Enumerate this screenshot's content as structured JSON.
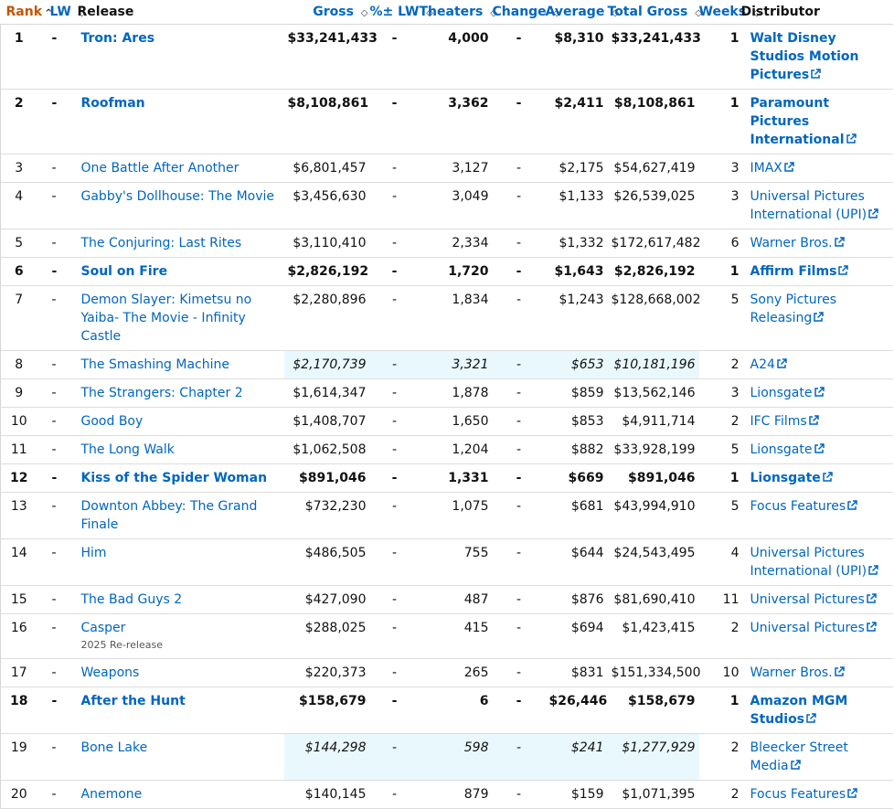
{
  "headers": {
    "rank": "Rank",
    "lw": "LW",
    "release": "Release",
    "gross": "Gross",
    "pct_lw": "%± LW",
    "theaters": "Theaters",
    "change": "Change",
    "average": "Average",
    "total_gross": "Total Gross",
    "weeks": "Weeks",
    "distributor": "Distributor"
  },
  "sort_icons": {
    "active": "caret-up-icon",
    "inactive": "sort-updown-icon"
  },
  "colors": {
    "link": "#0066c0",
    "rank_header": "#c45500",
    "highlight": "#e9f8fd"
  },
  "rows": [
    {
      "rank": "1",
      "lw": "-",
      "title": "Tron: Ares",
      "sub": "",
      "gross": "$33,241,433",
      "pct": "-",
      "theaters": "4,000",
      "change": "-",
      "average": "$8,310",
      "total": "$33,241,433",
      "weeks": "1",
      "dist": "Walt Disney Studios Motion Pictures",
      "bold": true,
      "hl": false
    },
    {
      "rank": "2",
      "lw": "-",
      "title": "Roofman",
      "sub": "",
      "gross": "$8,108,861",
      "pct": "-",
      "theaters": "3,362",
      "change": "-",
      "average": "$2,411",
      "total": "$8,108,861",
      "weeks": "1",
      "dist": "Paramount Pictures International",
      "bold": true,
      "hl": false
    },
    {
      "rank": "3",
      "lw": "-",
      "title": "One Battle After Another",
      "sub": "",
      "gross": "$6,801,457",
      "pct": "-",
      "theaters": "3,127",
      "change": "-",
      "average": "$2,175",
      "total": "$54,627,419",
      "weeks": "3",
      "dist": "IMAX",
      "bold": false,
      "hl": false
    },
    {
      "rank": "4",
      "lw": "-",
      "title": "Gabby's Dollhouse: The Movie",
      "sub": "",
      "gross": "$3,456,630",
      "pct": "-",
      "theaters": "3,049",
      "change": "-",
      "average": "$1,133",
      "total": "$26,539,025",
      "weeks": "3",
      "dist": "Universal Pictures International (UPI)",
      "bold": false,
      "hl": false
    },
    {
      "rank": "5",
      "lw": "-",
      "title": "The Conjuring: Last Rites",
      "sub": "",
      "gross": "$3,110,410",
      "pct": "-",
      "theaters": "2,334",
      "change": "-",
      "average": "$1,332",
      "total": "$172,617,482",
      "weeks": "6",
      "dist": "Warner Bros.",
      "bold": false,
      "hl": false
    },
    {
      "rank": "6",
      "lw": "-",
      "title": "Soul on Fire",
      "sub": "",
      "gross": "$2,826,192",
      "pct": "-",
      "theaters": "1,720",
      "change": "-",
      "average": "$1,643",
      "total": "$2,826,192",
      "weeks": "1",
      "dist": "Affirm Films",
      "bold": true,
      "hl": false
    },
    {
      "rank": "7",
      "lw": "-",
      "title": "Demon Slayer: Kimetsu no Yaiba- The Movie - Infinity Castle",
      "sub": "",
      "gross": "$2,280,896",
      "pct": "-",
      "theaters": "1,834",
      "change": "-",
      "average": "$1,243",
      "total": "$128,668,002",
      "weeks": "5",
      "dist": "Sony Pictures Releasing",
      "bold": false,
      "hl": false
    },
    {
      "rank": "8",
      "lw": "-",
      "title": "The Smashing Machine",
      "sub": "",
      "gross": "$2,170,739",
      "pct": "-",
      "theaters": "3,321",
      "change": "-",
      "average": "$653",
      "total": "$10,181,196",
      "weeks": "2",
      "dist": "A24",
      "bold": false,
      "hl": true
    },
    {
      "rank": "9",
      "lw": "-",
      "title": "The Strangers: Chapter 2",
      "sub": "",
      "gross": "$1,614,347",
      "pct": "-",
      "theaters": "1,878",
      "change": "-",
      "average": "$859",
      "total": "$13,562,146",
      "weeks": "3",
      "dist": "Lionsgate",
      "bold": false,
      "hl": false
    },
    {
      "rank": "10",
      "lw": "-",
      "title": "Good Boy",
      "sub": "",
      "gross": "$1,408,707",
      "pct": "-",
      "theaters": "1,650",
      "change": "-",
      "average": "$853",
      "total": "$4,911,714",
      "weeks": "2",
      "dist": "IFC Films",
      "bold": false,
      "hl": false
    },
    {
      "rank": "11",
      "lw": "-",
      "title": "The Long Walk",
      "sub": "",
      "gross": "$1,062,508",
      "pct": "-",
      "theaters": "1,204",
      "change": "-",
      "average": "$882",
      "total": "$33,928,199",
      "weeks": "5",
      "dist": "Lionsgate",
      "bold": false,
      "hl": false
    },
    {
      "rank": "12",
      "lw": "-",
      "title": "Kiss of the Spider Woman",
      "sub": "",
      "gross": "$891,046",
      "pct": "-",
      "theaters": "1,331",
      "change": "-",
      "average": "$669",
      "total": "$891,046",
      "weeks": "1",
      "dist": "Lionsgate",
      "bold": true,
      "hl": false
    },
    {
      "rank": "13",
      "lw": "-",
      "title": "Downton Abbey: The Grand Finale",
      "sub": "",
      "gross": "$732,230",
      "pct": "-",
      "theaters": "1,075",
      "change": "-",
      "average": "$681",
      "total": "$43,994,910",
      "weeks": "5",
      "dist": "Focus Features",
      "bold": false,
      "hl": false
    },
    {
      "rank": "14",
      "lw": "-",
      "title": "Him",
      "sub": "",
      "gross": "$486,505",
      "pct": "-",
      "theaters": "755",
      "change": "-",
      "average": "$644",
      "total": "$24,543,495",
      "weeks": "4",
      "dist": "Universal Pictures International (UPI)",
      "bold": false,
      "hl": false
    },
    {
      "rank": "15",
      "lw": "-",
      "title": "The Bad Guys 2",
      "sub": "",
      "gross": "$427,090",
      "pct": "-",
      "theaters": "487",
      "change": "-",
      "average": "$876",
      "total": "$81,690,410",
      "weeks": "11",
      "dist": "Universal Pictures",
      "bold": false,
      "hl": false
    },
    {
      "rank": "16",
      "lw": "-",
      "title": "Casper",
      "sub": "2025 Re-release",
      "gross": "$288,025",
      "pct": "-",
      "theaters": "415",
      "change": "-",
      "average": "$694",
      "total": "$1,423,415",
      "weeks": "2",
      "dist": "Universal Pictures",
      "bold": false,
      "hl": false
    },
    {
      "rank": "17",
      "lw": "-",
      "title": "Weapons",
      "sub": "",
      "gross": "$220,373",
      "pct": "-",
      "theaters": "265",
      "change": "-",
      "average": "$831",
      "total": "$151,334,500",
      "weeks": "10",
      "dist": "Warner Bros.",
      "bold": false,
      "hl": false
    },
    {
      "rank": "18",
      "lw": "-",
      "title": "After the Hunt",
      "sub": "",
      "gross": "$158,679",
      "pct": "-",
      "theaters": "6",
      "change": "-",
      "average": "$26,446",
      "total": "$158,679",
      "weeks": "1",
      "dist": "Amazon MGM Studios",
      "bold": true,
      "hl": false
    },
    {
      "rank": "19",
      "lw": "-",
      "title": "Bone Lake",
      "sub": "",
      "gross": "$144,298",
      "pct": "-",
      "theaters": "598",
      "change": "-",
      "average": "$241",
      "total": "$1,277,929",
      "weeks": "2",
      "dist": "Bleecker Street Media",
      "bold": false,
      "hl": true
    },
    {
      "rank": "20",
      "lw": "-",
      "title": "Anemone",
      "sub": "",
      "gross": "$140,145",
      "pct": "-",
      "theaters": "879",
      "change": "-",
      "average": "$159",
      "total": "$1,071,395",
      "weeks": "2",
      "dist": "Focus Features",
      "bold": false,
      "hl": false
    }
  ]
}
